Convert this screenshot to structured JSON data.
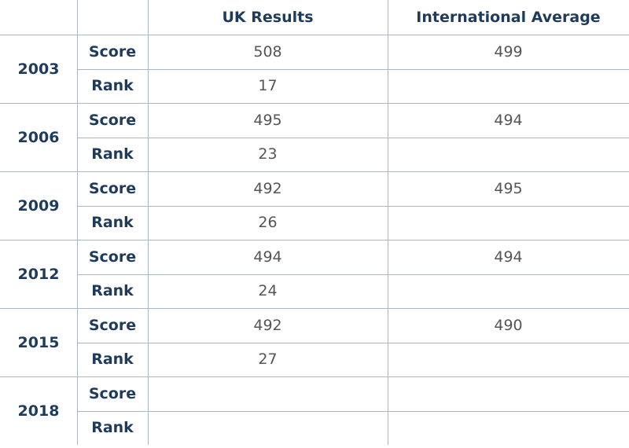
{
  "table": {
    "header": [
      "UK Results",
      "International Average"
    ],
    "groups": [
      {
        "year": "2003",
        "rows": [
          {
            "label": "Score",
            "uk": 508,
            "intl": 499
          },
          {
            "label": "Rank",
            "uk": 17
          }
        ]
      },
      {
        "year": "2006",
        "rows": [
          {
            "label": "Score",
            "uk": 495,
            "intl": 494
          },
          {
            "label": "Rank",
            "uk": 23
          }
        ]
      },
      {
        "year": "2009",
        "rows": [
          {
            "label": "Score",
            "uk": 492,
            "intl": 495
          },
          {
            "label": "Rank",
            "uk": 26
          }
        ]
      },
      {
        "year": "2012",
        "rows": [
          {
            "label": "Score",
            "uk": 494,
            "intl": 494
          },
          {
            "label": "Rank",
            "uk": 24
          }
        ]
      },
      {
        "year": "2015",
        "rows": [
          {
            "label": "Score",
            "uk": 492,
            "intl": 490
          },
          {
            "label": "Rank",
            "uk": 27
          }
        ]
      },
      {
        "year": "2018",
        "rows": [
          {
            "label": "Score"
          },
          {
            "label": "Rank"
          }
        ]
      }
    ]
  }
}
